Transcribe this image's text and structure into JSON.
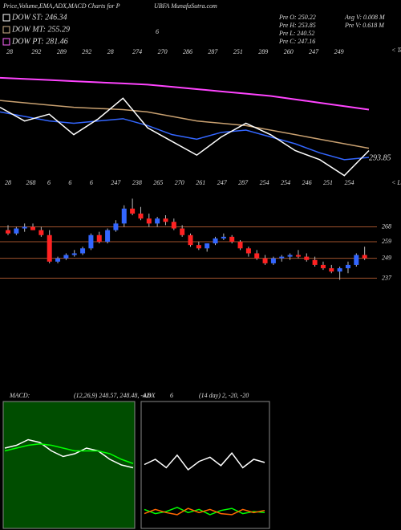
{
  "chart_data": {
    "type": "candlestick",
    "header": {
      "title": "Price,Volume,EMA,ADX,MACD Charts for P",
      "site": "UBFA MunafaSutra.com",
      "mark": "6"
    },
    "legend": [
      {
        "name": "DOW ST: 246.34",
        "color": "#ffffff"
      },
      {
        "name": "DOW MT: 255.29",
        "color": "#d2b48c"
      },
      {
        "name": "DOW PT: 281.46",
        "color": "#ff66ff"
      }
    ],
    "stats": [
      "Pre O: 250.22",
      "Pre H: 253.85",
      "Pre L: 240.52",
      "Pre C: 247.16",
      "Avg V: 0.008 M",
      "Pre V: 0.618 M"
    ],
    "top_tag": "< Topa",
    "low_tag": "< Lowa",
    "top_labels": [
      "28",
      "292",
      "289",
      "292",
      "28",
      "274",
      "270",
      "286",
      "287",
      "251",
      "289",
      "260",
      "247",
      "249"
    ],
    "low_labels": [
      "28",
      "268",
      "6",
      "6",
      "6",
      "247",
      "238",
      "265",
      "270",
      "261",
      "247",
      "287",
      "254",
      "254",
      "246",
      "251",
      "254"
    ],
    "last_label": "293.85",
    "ema_ylim": [
      275,
      335
    ],
    "ema_series": [
      {
        "name": "DOW PT",
        "color": "#ff44ff",
        "values": [
          322,
          321.5,
          321,
          320.5,
          320,
          319.5,
          319,
          318,
          317,
          316,
          315,
          314,
          312.5,
          311,
          309.5,
          308
        ]
      },
      {
        "name": "DOW MT",
        "color": "#c8a070",
        "values": [
          312,
          311,
          310,
          309,
          308.5,
          308,
          307,
          305,
          303,
          302,
          301,
          299,
          297,
          295,
          293,
          291
        ]
      },
      {
        "name": "DOW ST",
        "color": "#3366ff",
        "values": [
          307,
          305,
          303,
          302,
          303,
          304,
          301,
          297,
          295,
          298,
          299,
          296,
          293,
          289,
          286,
          287
        ]
      },
      {
        "name": "Close",
        "color": "#ffffff",
        "values": [
          309,
          303,
          306,
          297,
          304,
          313,
          300,
          294,
          288,
          296,
          302,
          297,
          290,
          286,
          279,
          290
        ]
      }
    ],
    "price_ylim": [
      228,
      291
    ],
    "levels": [
      {
        "value": 259,
        "label": "259"
      },
      {
        "value": 268,
        "label": "268"
      },
      {
        "value": 249,
        "label": "249"
      },
      {
        "value": 237,
        "label": "237"
      }
    ],
    "up_color": "#3366ff",
    "down_color": "#ff2222",
    "candles": [
      [
        266,
        269,
        263,
        264
      ],
      [
        264,
        268,
        263,
        267
      ],
      [
        267,
        270,
        265,
        268
      ],
      [
        268,
        270,
        266,
        266
      ],
      [
        266,
        268,
        262,
        263
      ],
      [
        263,
        266,
        246,
        247
      ],
      [
        247,
        250,
        246,
        249
      ],
      [
        249,
        252,
        248,
        251
      ],
      [
        251,
        254,
        250,
        252
      ],
      [
        252,
        256,
        251,
        255
      ],
      [
        255,
        264,
        254,
        263
      ],
      [
        263,
        265,
        258,
        259
      ],
      [
        259,
        267,
        258,
        266
      ],
      [
        266,
        272,
        265,
        270
      ],
      [
        270,
        281,
        268,
        279
      ],
      [
        279,
        285,
        275,
        276
      ],
      [
        276,
        280,
        272,
        273
      ],
      [
        273,
        276,
        268,
        270
      ],
      [
        270,
        274,
        268,
        273
      ],
      [
        273,
        275,
        269,
        271
      ],
      [
        271,
        273,
        266,
        267
      ],
      [
        267,
        269,
        262,
        263
      ],
      [
        263,
        264,
        256,
        257
      ],
      [
        257,
        259,
        254,
        255
      ],
      [
        255,
        258,
        253,
        258
      ],
      [
        258,
        262,
        257,
        261
      ],
      [
        261,
        264,
        260,
        262
      ],
      [
        262,
        263,
        258,
        259
      ],
      [
        259,
        260,
        254,
        255
      ],
      [
        255,
        256,
        250,
        252
      ],
      [
        252,
        254,
        248,
        249
      ],
      [
        249,
        251,
        245,
        246
      ],
      [
        246,
        250,
        245,
        249
      ],
      [
        249,
        251,
        247,
        250
      ],
      [
        250,
        252,
        248,
        251
      ],
      [
        251,
        254,
        249,
        250
      ],
      [
        250,
        252,
        247,
        248
      ],
      [
        248,
        250,
        244,
        245
      ],
      [
        245,
        247,
        242,
        243
      ],
      [
        243,
        245,
        240,
        241
      ],
      [
        241,
        244,
        236,
        243
      ],
      [
        243,
        247,
        240,
        245
      ],
      [
        245,
        252,
        244,
        251
      ],
      [
        251,
        256,
        248,
        249
      ]
    ],
    "macd": {
      "label": "MACD:",
      "params": "(12,26,9) 248.57, 248.48, -4.8",
      "ylim": [
        -10,
        10
      ],
      "series": [
        {
          "name": "MACD",
          "color": "#ffffff",
          "values": [
            2,
            3,
            5,
            4,
            1,
            -1,
            0,
            2,
            1,
            -2,
            -4,
            -5
          ]
        },
        {
          "name": "Signal",
          "color": "#00ff00",
          "values": [
            1,
            2,
            3,
            3.5,
            3,
            2,
            1,
            1,
            1,
            0,
            -2,
            -3.5
          ]
        }
      ]
    },
    "adx": {
      "label": "ADX",
      "value": "6",
      "params": "(14 day) 2, -20, -20",
      "ylim": [
        0,
        100
      ],
      "series": [
        {
          "name": "ADX",
          "color": "#ffffff",
          "values": [
            55,
            60,
            52,
            64,
            50,
            58,
            62,
            54,
            66,
            52,
            60,
            57
          ]
        },
        {
          "name": "+DI",
          "color": "#00ff00",
          "values": [
            12,
            8,
            10,
            14,
            9,
            12,
            7,
            11,
            13,
            8,
            10,
            9
          ]
        },
        {
          "name": "-DI",
          "color": "#ff6600",
          "values": [
            8,
            12,
            9,
            7,
            13,
            9,
            12,
            8,
            7,
            12,
            9,
            11
          ]
        }
      ]
    }
  }
}
